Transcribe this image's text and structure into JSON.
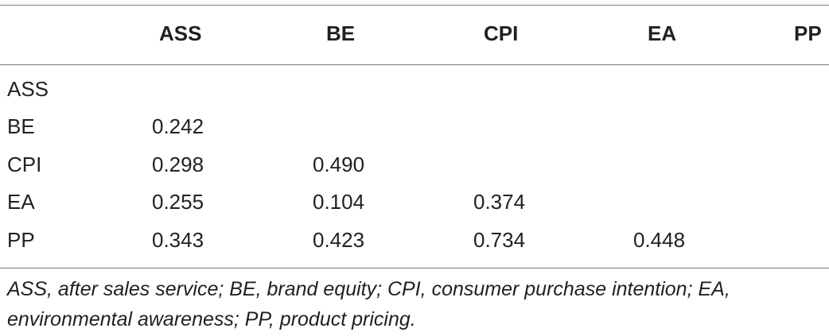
{
  "table": {
    "columns": [
      "",
      "ASS",
      "BE",
      "CPI",
      "EA",
      "PP"
    ],
    "rows": [
      {
        "label": "ASS",
        "cells": [
          "",
          "",
          "",
          "",
          ""
        ]
      },
      {
        "label": "BE",
        "cells": [
          "0.242",
          "",
          "",
          "",
          ""
        ]
      },
      {
        "label": "CPI",
        "cells": [
          "0.298",
          "0.490",
          "",
          "",
          ""
        ]
      },
      {
        "label": "EA",
        "cells": [
          "0.255",
          "0.104",
          "0.374",
          "",
          ""
        ]
      },
      {
        "label": "PP",
        "cells": [
          "0.343",
          "0.423",
          "0.734",
          "0.448",
          ""
        ]
      }
    ]
  },
  "footnote": "ASS, after sales service; BE, brand equity; CPI, consumer purchase intention; EA, environmental awareness; PP, product pricing."
}
